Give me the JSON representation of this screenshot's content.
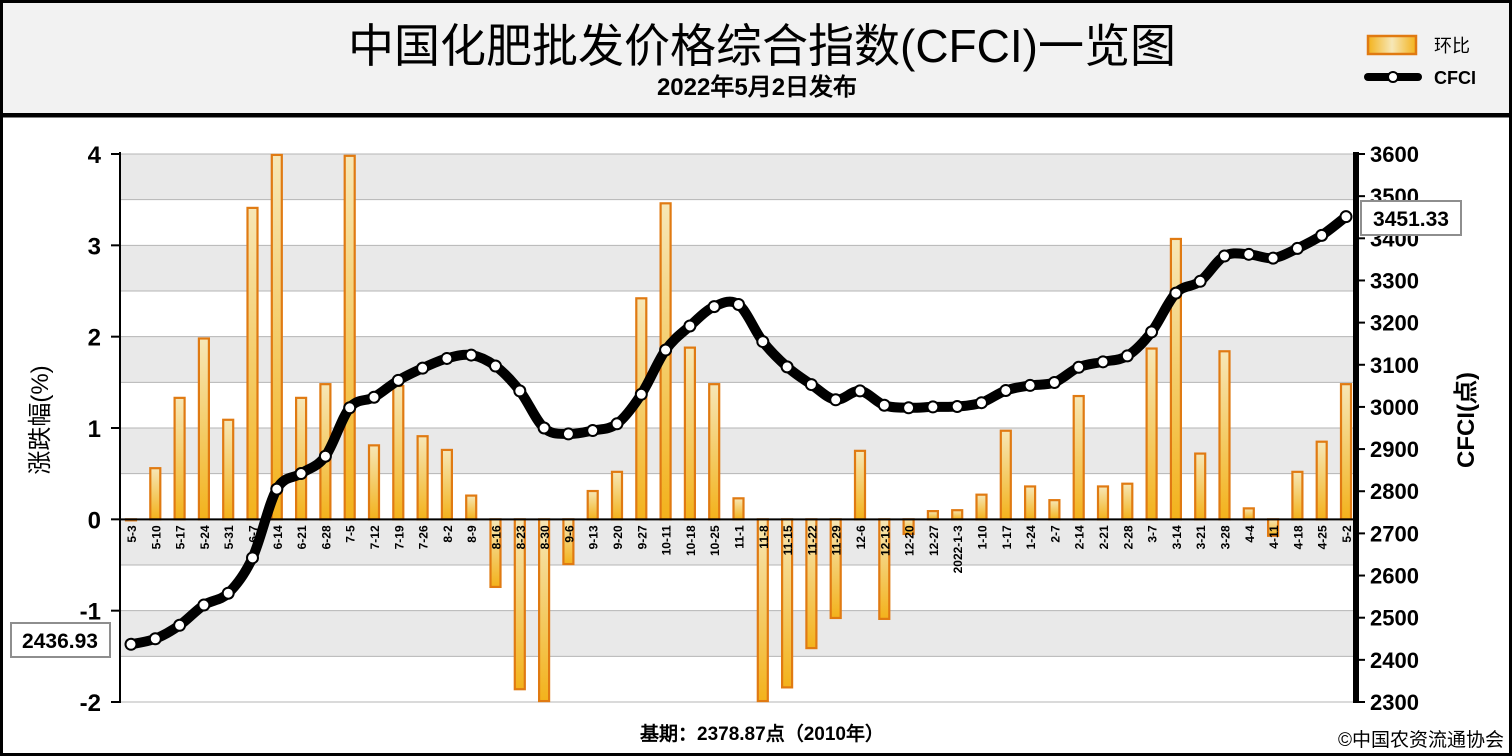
{
  "header": {
    "title": "中国化肥批发价格综合指数(CFCI)一览图",
    "subtitle": "2022年5月2日发布"
  },
  "legend": {
    "bar_label": "环比",
    "line_label": "CFCI"
  },
  "footer": {
    "base_label": "基期：2378.87点（2010年）",
    "copyright": "©中国农资流通协会"
  },
  "colors": {
    "bar_fill_top": "#f6e7b7",
    "bar_fill_bottom": "#f3b21b",
    "bar_stroke": "#e07a12",
    "line": "#000000",
    "marker_fill": "#ffffff",
    "band_shade": "#e9e9e9",
    "grid": "#b5b5b5"
  },
  "chart_data": {
    "type": "bar+line",
    "categories": [
      "5-3",
      "5-10",
      "5-17",
      "5-24",
      "5-31",
      "6-7",
      "6-14",
      "6-21",
      "6-28",
      "7-5",
      "7-12",
      "7-19",
      "7-26",
      "8-2",
      "8-9",
      "8-16",
      "8-23",
      "8-30",
      "9-6",
      "9-13",
      "9-20",
      "9-27",
      "10-11",
      "10-18",
      "10-25",
      "11-1",
      "11-8",
      "11-15",
      "11-22",
      "11-29",
      "12-6",
      "12-13",
      "12-20",
      "12-27",
      "2022-1-3",
      "1-10",
      "1-17",
      "1-24",
      "2-7",
      "2-14",
      "2-21",
      "2-28",
      "3-7",
      "3-14",
      "3-21",
      "3-28",
      "4-4",
      "4-11",
      "4-18",
      "4-25",
      "5-2"
    ],
    "series": [
      {
        "name": "环比",
        "type": "bar",
        "axis": "left",
        "values": [
          0,
          0.56,
          1.33,
          1.98,
          1.09,
          3.41,
          3.99,
          1.33,
          1.48,
          3.98,
          0.81,
          1.46,
          0.91,
          0.76,
          0.26,
          -0.74,
          -1.86,
          -1.99,
          -0.49,
          0.31,
          0.52,
          2.42,
          3.46,
          1.88,
          1.48,
          0.23,
          -1.99,
          -1.84,
          -1.41,
          -1.08,
          0.75,
          -1.09,
          -0.16,
          0.09,
          0.1,
          0.27,
          0.97,
          0.36,
          0.21,
          1.35,
          0.36,
          0.39,
          1.87,
          3.07,
          0.72,
          1.84,
          0.12,
          -0.18,
          0.52,
          0.85,
          1.48
        ]
      },
      {
        "name": "CFCI",
        "type": "line",
        "axis": "right",
        "values": [
          2436.93,
          2450,
          2482,
          2530,
          2558,
          2642,
          2805,
          2842,
          2883,
          2998,
          3023,
          3063,
          3092,
          3115,
          3123,
          3097,
          3038,
          2950,
          2936,
          2944,
          2960,
          3030,
          3135,
          3192,
          3238,
          3243,
          3155,
          3095,
          3053,
          3017,
          3038,
          3004,
          2998,
          3000,
          3001,
          3010,
          3039,
          3051,
          3058,
          3094,
          3107,
          3121,
          3178,
          3270,
          3298,
          3358,
          3362,
          3353,
          3376,
          3407,
          3451.33
        ]
      }
    ],
    "y_left": {
      "label": "涨跌幅(%)",
      "min": -2,
      "max": 4,
      "ticks": [
        "-2",
        "-1",
        "0",
        "1",
        "2",
        "3",
        "4"
      ]
    },
    "y_right": {
      "label": "CFCI(点)",
      "min": 2300,
      "max": 3600,
      "ticks": [
        "2300",
        "2400",
        "2500",
        "2600",
        "2700",
        "2800",
        "2900",
        "3000",
        "3100",
        "3200",
        "3300",
        "3400",
        "3500",
        "3600"
      ]
    },
    "callouts": {
      "start": "2436.93",
      "end": "3451.33"
    },
    "grid": true,
    "legend_position": "top-right"
  }
}
